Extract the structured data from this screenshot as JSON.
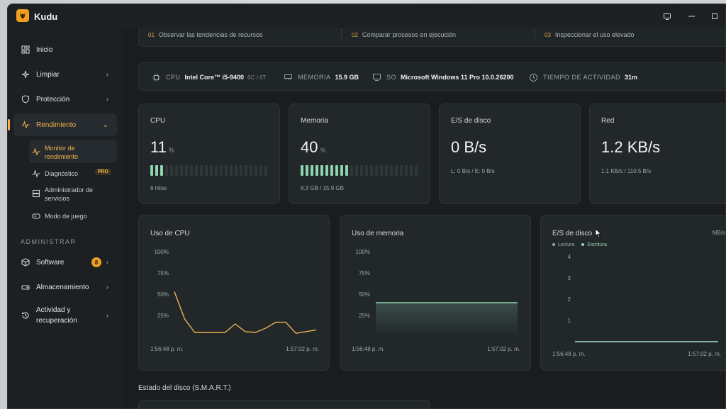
{
  "app": {
    "title": "Kudu"
  },
  "colors": {
    "accent": "#f2b24a",
    "good": "#8fd4b0",
    "cpu_line": "#e8b055",
    "badge": "#f0a020"
  },
  "sidebar": {
    "items": [
      {
        "label": "Inicio",
        "icon": "grid-icon"
      },
      {
        "label": "Limpiar",
        "icon": "sparkle-icon"
      },
      {
        "label": "Protección",
        "icon": "shield-icon"
      },
      {
        "label": "Rendimiento",
        "icon": "pulse-icon"
      }
    ],
    "subitems": [
      {
        "label": "Monitor de rendimiento",
        "icon": "pulse-icon"
      },
      {
        "label": "Diagnóstico",
        "icon": "pulse-icon",
        "badge": "PRO"
      },
      {
        "label": "Administrador de servicios",
        "icon": "server-icon"
      },
      {
        "label": "Modo de juego",
        "icon": "gamepad-icon"
      }
    ],
    "section_admin": "ADMINISTRAR",
    "admin_items": [
      {
        "label": "Software",
        "icon": "box-icon",
        "badge": "8"
      },
      {
        "label": "Almacenamiento",
        "icon": "drive-icon"
      },
      {
        "label": "Actividad y recuperación",
        "icon": "history-icon"
      }
    ]
  },
  "steps": [
    {
      "num": "01",
      "label": "Observar las tendencias de recursos"
    },
    {
      "num": "02",
      "label": "Comparar procesos en ejecución"
    },
    {
      "num": "03",
      "label": "Inspeccionar el uso elevado"
    }
  ],
  "system": {
    "cpu_key": "CPU",
    "cpu_val": "Intel Core™ i5-9400",
    "cpu_dim": "6C / 6T",
    "mem_key": "MEMORIA",
    "mem_val": "15.9 GB",
    "os_key": "SO",
    "os_val": "Microsoft Windows 11 Pro 10.0.26200",
    "uptime_key": "TIEMPO DE ACTIVIDAD",
    "uptime_val": "31m"
  },
  "stats": {
    "cpu": {
      "title": "CPU",
      "value": "11",
      "unit": "%",
      "fraction": 0.11,
      "sub": "6 hilos"
    },
    "mem": {
      "title": "Memoria",
      "value": "40",
      "unit": "%",
      "fraction": 0.4,
      "sub": "6.3 GB / 15.9 GB"
    },
    "disk": {
      "title": "E/S de disco",
      "value": "0 B/s",
      "sub": "L: 0 B/s / E: 0 B/s"
    },
    "net": {
      "title": "Red",
      "value": "1.2 KB/s",
      "sub": "1.1 KB/s / 110.5 B/s"
    }
  },
  "charts": {
    "cpu": {
      "title": "Uso de CPU",
      "x_start": "1:56:48 p. m.",
      "x_end": "1:57:02 p. m."
    },
    "mem": {
      "title": "Uso de memoria",
      "x_start": "1:56:48 p. m.",
      "x_end": "1:57:02 p. m."
    },
    "disk": {
      "title": "E/S de disco",
      "unit": "MB/s",
      "legend_read": "Lectura",
      "legend_write": "Escritura",
      "x_start": "1:56:48 p. m.",
      "x_end": "1:57:02 p. m."
    }
  },
  "chart_data": [
    {
      "type": "line",
      "title": "Uso de CPU",
      "ylim": [
        0,
        100
      ],
      "yticks": [
        "100%",
        "75%",
        "50%",
        "25%"
      ],
      "series": [
        {
          "values": [
            53,
            21,
            5,
            5,
            5,
            5,
            15,
            6,
            5,
            10,
            17,
            17,
            4,
            6,
            8
          ]
        }
      ]
    },
    {
      "type": "area",
      "title": "Uso de memoria",
      "ylim": [
        0,
        100
      ],
      "yticks": [
        "100%",
        "75%",
        "50%",
        "25%"
      ],
      "series": [
        {
          "values": [
            40,
            40,
            40,
            40,
            40,
            40,
            40,
            40,
            40,
            40
          ]
        }
      ]
    },
    {
      "type": "line",
      "title": "E/S de disco",
      "ylim": [
        0,
        4
      ],
      "yticks": [
        "4",
        "3",
        "2",
        "1"
      ],
      "series": [
        {
          "name": "Lectura",
          "values": [
            0,
            0,
            0,
            0,
            0,
            0,
            0,
            0,
            0,
            0
          ]
        },
        {
          "name": "Escritura",
          "values": [
            0,
            0,
            0,
            0,
            0,
            0,
            0,
            0,
            0,
            0
          ]
        }
      ]
    }
  ],
  "smart": {
    "title": "Estado del disco (S.M.A.R.T.)"
  }
}
